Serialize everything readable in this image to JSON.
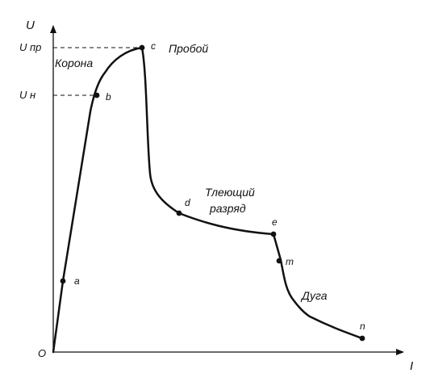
{
  "axes": {
    "y_title": "U",
    "x_title": "I",
    "origin": "O"
  },
  "ticks": {
    "u_breakdown": "U пр",
    "u_ignition": "U н"
  },
  "regions": {
    "corona": "Корона",
    "breakdown": "Пробой",
    "glow_line1": "Тлеющий",
    "glow_line2": "разряд",
    "arc": "Дуга"
  },
  "points": [
    {
      "label": "a"
    },
    {
      "label": "b"
    },
    {
      "label": "c"
    },
    {
      "label": "d"
    },
    {
      "label": "e"
    },
    {
      "label": "m"
    },
    {
      "label": "n"
    }
  ],
  "colors": {
    "ink": "#111111",
    "background": "#ffffff"
  }
}
